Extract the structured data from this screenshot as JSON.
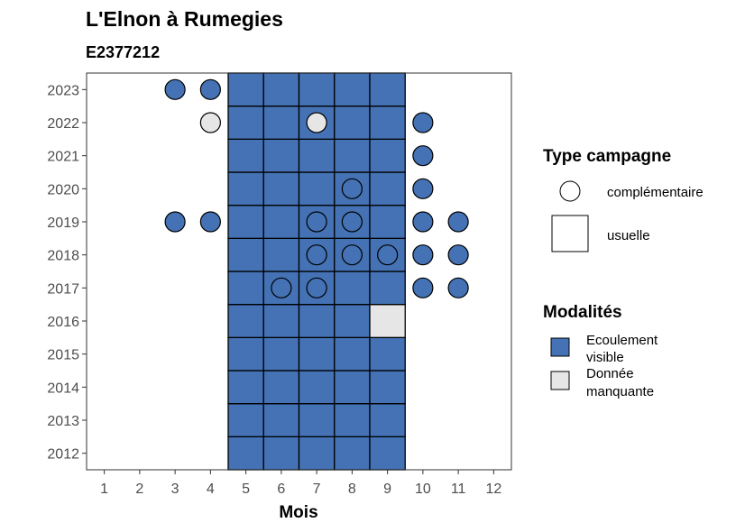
{
  "chart_data": {
    "type": "heatmap",
    "title": "L'Elnon à Rumegies",
    "subtitle": "E2377212",
    "xlabel": "Mois",
    "ylabel": "",
    "x_ticks": [
      "1",
      "2",
      "3",
      "4",
      "5",
      "6",
      "7",
      "8",
      "9",
      "10",
      "11",
      "12"
    ],
    "y_ticks": [
      "2012",
      "2013",
      "2014",
      "2015",
      "2016",
      "2017",
      "2018",
      "2019",
      "2020",
      "2021",
      "2022",
      "2023"
    ],
    "xlim": [
      0.5,
      12.5
    ],
    "ylim": [
      2011.5,
      2023.5
    ],
    "legend_position": "right",
    "colors": {
      "ecoulement_visible": "#4472b4",
      "donnee_manquante": "#e6e6e6"
    },
    "tiles": [
      {
        "month": 5,
        "year": 2012,
        "modalite": "Ecoulement visible"
      },
      {
        "month": 6,
        "year": 2012,
        "modalite": "Ecoulement visible"
      },
      {
        "month": 7,
        "year": 2012,
        "modalite": "Ecoulement visible"
      },
      {
        "month": 8,
        "year": 2012,
        "modalite": "Ecoulement visible"
      },
      {
        "month": 9,
        "year": 2012,
        "modalite": "Ecoulement visible"
      },
      {
        "month": 5,
        "year": 2013,
        "modalite": "Ecoulement visible"
      },
      {
        "month": 6,
        "year": 2013,
        "modalite": "Ecoulement visible"
      },
      {
        "month": 7,
        "year": 2013,
        "modalite": "Ecoulement visible"
      },
      {
        "month": 8,
        "year": 2013,
        "modalite": "Ecoulement visible"
      },
      {
        "month": 9,
        "year": 2013,
        "modalite": "Ecoulement visible"
      },
      {
        "month": 5,
        "year": 2014,
        "modalite": "Ecoulement visible"
      },
      {
        "month": 6,
        "year": 2014,
        "modalite": "Ecoulement visible"
      },
      {
        "month": 7,
        "year": 2014,
        "modalite": "Ecoulement visible"
      },
      {
        "month": 8,
        "year": 2014,
        "modalite": "Ecoulement visible"
      },
      {
        "month": 9,
        "year": 2014,
        "modalite": "Ecoulement visible"
      },
      {
        "month": 5,
        "year": 2015,
        "modalite": "Ecoulement visible"
      },
      {
        "month": 6,
        "year": 2015,
        "modalite": "Ecoulement visible"
      },
      {
        "month": 7,
        "year": 2015,
        "modalite": "Ecoulement visible"
      },
      {
        "month": 8,
        "year": 2015,
        "modalite": "Ecoulement visible"
      },
      {
        "month": 9,
        "year": 2015,
        "modalite": "Ecoulement visible"
      },
      {
        "month": 5,
        "year": 2016,
        "modalite": "Ecoulement visible"
      },
      {
        "month": 6,
        "year": 2016,
        "modalite": "Ecoulement visible"
      },
      {
        "month": 7,
        "year": 2016,
        "modalite": "Ecoulement visible"
      },
      {
        "month": 8,
        "year": 2016,
        "modalite": "Ecoulement visible"
      },
      {
        "month": 9,
        "year": 2016,
        "modalite": "Donnée manquante"
      },
      {
        "month": 5,
        "year": 2017,
        "modalite": "Ecoulement visible"
      },
      {
        "month": 6,
        "year": 2017,
        "modalite": "Ecoulement visible"
      },
      {
        "month": 7,
        "year": 2017,
        "modalite": "Ecoulement visible"
      },
      {
        "month": 8,
        "year": 2017,
        "modalite": "Ecoulement visible"
      },
      {
        "month": 9,
        "year": 2017,
        "modalite": "Ecoulement visible"
      },
      {
        "month": 5,
        "year": 2018,
        "modalite": "Ecoulement visible"
      },
      {
        "month": 6,
        "year": 2018,
        "modalite": "Ecoulement visible"
      },
      {
        "month": 7,
        "year": 2018,
        "modalite": "Ecoulement visible"
      },
      {
        "month": 8,
        "year": 2018,
        "modalite": "Ecoulement visible"
      },
      {
        "month": 9,
        "year": 2018,
        "modalite": "Ecoulement visible"
      },
      {
        "month": 5,
        "year": 2019,
        "modalite": "Ecoulement visible"
      },
      {
        "month": 6,
        "year": 2019,
        "modalite": "Ecoulement visible"
      },
      {
        "month": 7,
        "year": 2019,
        "modalite": "Ecoulement visible"
      },
      {
        "month": 8,
        "year": 2019,
        "modalite": "Ecoulement visible"
      },
      {
        "month": 9,
        "year": 2019,
        "modalite": "Ecoulement visible"
      },
      {
        "month": 5,
        "year": 2020,
        "modalite": "Ecoulement visible"
      },
      {
        "month": 6,
        "year": 2020,
        "modalite": "Ecoulement visible"
      },
      {
        "month": 7,
        "year": 2020,
        "modalite": "Ecoulement visible"
      },
      {
        "month": 8,
        "year": 2020,
        "modalite": "Ecoulement visible"
      },
      {
        "month": 9,
        "year": 2020,
        "modalite": "Ecoulement visible"
      },
      {
        "month": 5,
        "year": 2021,
        "modalite": "Ecoulement visible"
      },
      {
        "month": 6,
        "year": 2021,
        "modalite": "Ecoulement visible"
      },
      {
        "month": 7,
        "year": 2021,
        "modalite": "Ecoulement visible"
      },
      {
        "month": 8,
        "year": 2021,
        "modalite": "Ecoulement visible"
      },
      {
        "month": 9,
        "year": 2021,
        "modalite": "Ecoulement visible"
      },
      {
        "month": 5,
        "year": 2022,
        "modalite": "Ecoulement visible"
      },
      {
        "month": 6,
        "year": 2022,
        "modalite": "Ecoulement visible"
      },
      {
        "month": 7,
        "year": 2022,
        "modalite": "Ecoulement visible"
      },
      {
        "month": 8,
        "year": 2022,
        "modalite": "Ecoulement visible"
      },
      {
        "month": 9,
        "year": 2022,
        "modalite": "Ecoulement visible"
      },
      {
        "month": 5,
        "year": 2023,
        "modalite": "Ecoulement visible"
      },
      {
        "month": 6,
        "year": 2023,
        "modalite": "Ecoulement visible"
      },
      {
        "month": 7,
        "year": 2023,
        "modalite": "Ecoulement visible"
      },
      {
        "month": 8,
        "year": 2023,
        "modalite": "Ecoulement visible"
      },
      {
        "month": 9,
        "year": 2023,
        "modalite": "Ecoulement visible"
      }
    ],
    "points": [
      {
        "month": 3,
        "year": 2023,
        "modalite": "Ecoulement visible"
      },
      {
        "month": 4,
        "year": 2023,
        "modalite": "Ecoulement visible"
      },
      {
        "month": 4,
        "year": 2022,
        "modalite": "Donnée manquante"
      },
      {
        "month": 7,
        "year": 2022,
        "modalite": "Donnée manquante"
      },
      {
        "month": 10,
        "year": 2022,
        "modalite": "Ecoulement visible"
      },
      {
        "month": 10,
        "year": 2021,
        "modalite": "Ecoulement visible"
      },
      {
        "month": 8,
        "year": 2020,
        "modalite": "Ecoulement visible"
      },
      {
        "month": 10,
        "year": 2020,
        "modalite": "Ecoulement visible"
      },
      {
        "month": 3,
        "year": 2019,
        "modalite": "Ecoulement visible"
      },
      {
        "month": 4,
        "year": 2019,
        "modalite": "Ecoulement visible"
      },
      {
        "month": 7,
        "year": 2019,
        "modalite": "Ecoulement visible"
      },
      {
        "month": 8,
        "year": 2019,
        "modalite": "Ecoulement visible"
      },
      {
        "month": 10,
        "year": 2019,
        "modalite": "Ecoulement visible"
      },
      {
        "month": 11,
        "year": 2019,
        "modalite": "Ecoulement visible"
      },
      {
        "month": 7,
        "year": 2018,
        "modalite": "Ecoulement visible"
      },
      {
        "month": 8,
        "year": 2018,
        "modalite": "Ecoulement visible"
      },
      {
        "month": 9,
        "year": 2018,
        "modalite": "Ecoulement visible"
      },
      {
        "month": 10,
        "year": 2018,
        "modalite": "Ecoulement visible"
      },
      {
        "month": 11,
        "year": 2018,
        "modalite": "Ecoulement visible"
      },
      {
        "month": 6,
        "year": 2017,
        "modalite": "Ecoulement visible"
      },
      {
        "month": 7,
        "year": 2017,
        "modalite": "Ecoulement visible"
      },
      {
        "month": 10,
        "year": 2017,
        "modalite": "Ecoulement visible"
      },
      {
        "month": 11,
        "year": 2017,
        "modalite": "Ecoulement visible"
      }
    ],
    "legend_type": {
      "title": "Type campagne",
      "entries": [
        {
          "label": "complémentaire",
          "shape": "circle"
        },
        {
          "label": "usuelle",
          "shape": "square"
        }
      ]
    },
    "legend_modalites": {
      "title": "Modalités",
      "entries": [
        {
          "line1": "Ecoulement",
          "line2": "visible",
          "key": "ecoulement_visible"
        },
        {
          "line1": "Donnée",
          "line2": "manquante",
          "key": "donnee_manquante"
        }
      ]
    }
  }
}
